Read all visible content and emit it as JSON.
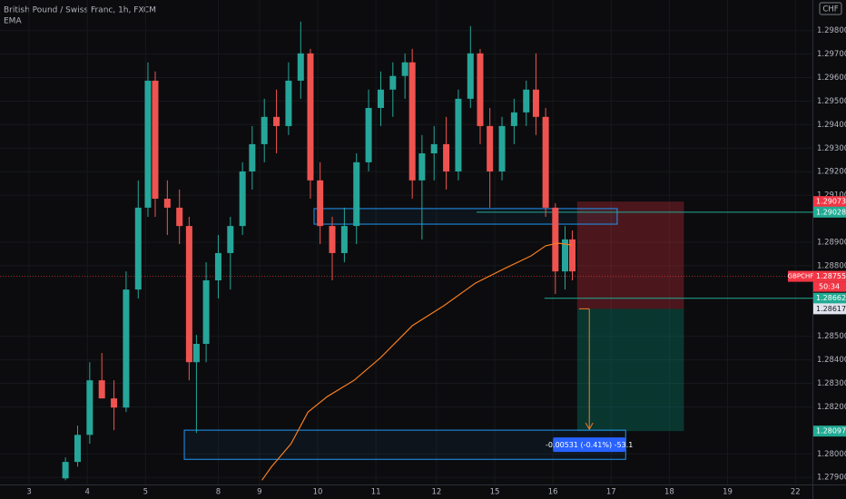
{
  "chart_data": {
    "type": "candlestick",
    "title": "British Pound / Swiss Franc, 1h, FXCM",
    "indicator": "EMA",
    "currency": "CHF",
    "symbol": "GBPCHF",
    "countdown": "50:34",
    "up_color": "#26a69a",
    "down_color": "#ef5350",
    "x": [
      27,
      32,
      37,
      42,
      47,
      52,
      57,
      61,
      64,
      69,
      74,
      78,
      81,
      85,
      90,
      95,
      100,
      104,
      109,
      114,
      119,
      124,
      128,
      132,
      137,
      142,
      147,
      152,
      157,
      162,
      167,
      170,
      174,
      179,
      184,
      189,
      194,
      198,
      202,
      207,
      212,
      217,
      221,
      225,
      229,
      233,
      236
    ],
    "open": [
      1.27896,
      1.27966,
      1.28081,
      1.28313,
      1.28236,
      1.28197,
      1.28699,
      1.29047,
      1.29587,
      1.29085,
      1.29047,
      1.28969,
      1.2839,
      1.28468,
      1.28738,
      1.28854,
      1.28969,
      1.29201,
      1.29317,
      1.29433,
      1.29394,
      1.29587,
      1.29703,
      1.29163,
      1.28969,
      1.28854,
      1.28969,
      1.2924,
      1.29471,
      1.29549,
      1.29607,
      1.29665,
      1.29163,
      1.29278,
      1.29317,
      1.29201,
      1.2951,
      1.29703,
      1.29394,
      1.29201,
      1.29394,
      1.29452,
      1.29549,
      1.29433,
      1.29047,
      1.28776,
      1.28912
    ],
    "high": [
      1.27985,
      1.2812,
      1.2839,
      1.28429,
      1.28313,
      1.28776,
      1.29163,
      1.29665,
      1.29626,
      1.29163,
      1.29124,
      1.29008,
      1.28506,
      1.28815,
      1.28931,
      1.29008,
      1.2924,
      1.29394,
      1.2951,
      1.29549,
      1.29665,
      1.29838,
      1.29722,
      1.2924,
      1.29008,
      1.29047,
      1.29278,
      1.29549,
      1.29626,
      1.29665,
      1.29703,
      1.29722,
      1.29356,
      1.29394,
      1.29433,
      1.29549,
      1.29819,
      1.29722,
      1.29471,
      1.29433,
      1.2951,
      1.29587,
      1.29703,
      1.29471,
      1.29066,
      1.28969,
      1.2895
    ],
    "low": [
      1.27888,
      1.27946,
      1.28043,
      1.28236,
      1.28101,
      1.28178,
      1.28661,
      1.29008,
      1.29008,
      1.28931,
      1.28892,
      1.28313,
      1.28089,
      1.2839,
      1.28661,
      1.28699,
      1.28931,
      1.29124,
      1.2924,
      1.29278,
      1.29356,
      1.2951,
      1.29085,
      1.28892,
      1.28738,
      1.28815,
      1.28892,
      1.29201,
      1.29394,
      1.29433,
      1.2951,
      1.29085,
      1.28912,
      1.29163,
      1.29124,
      1.29163,
      1.29471,
      1.29317,
      1.29047,
      1.29163,
      1.29317,
      1.29394,
      1.29356,
      1.29008,
      1.2868,
      1.28699,
      1.28738
    ],
    "close": [
      1.27966,
      1.28081,
      1.28313,
      1.28236,
      1.28197,
      1.28699,
      1.29047,
      1.29587,
      1.29085,
      1.29047,
      1.28969,
      1.2839,
      1.28468,
      1.28738,
      1.28854,
      1.28969,
      1.29201,
      1.29317,
      1.29433,
      1.29394,
      1.29587,
      1.29703,
      1.29163,
      1.28969,
      1.28854,
      1.28969,
      1.2924,
      1.29471,
      1.29549,
      1.29607,
      1.29665,
      1.29163,
      1.29278,
      1.29317,
      1.29201,
      1.2951,
      1.29703,
      1.29394,
      1.29201,
      1.29394,
      1.29452,
      1.29549,
      1.29433,
      1.29047,
      1.28776,
      1.28912,
      1.28776
    ],
    "ema": {
      "color": "#f57c20",
      "x": [
        108,
        112,
        120,
        127,
        135,
        146,
        157,
        170,
        183,
        196,
        208,
        219,
        225,
        230,
        236
      ],
      "values": [
        1.27888,
        1.27946,
        1.28043,
        1.28178,
        1.28244,
        1.28313,
        1.2841,
        1.28545,
        1.2863,
        1.28726,
        1.28788,
        1.28842,
        1.28885,
        1.28896,
        1.28888
      ]
    },
    "xlim": [
      0,
      335
    ],
    "xticks": [
      {
        "value": 12,
        "label": "3"
      },
      {
        "value": 36,
        "label": "4"
      },
      {
        "value": 60,
        "label": "5"
      },
      {
        "value": 90,
        "label": "8"
      },
      {
        "value": 107,
        "label": "9"
      },
      {
        "value": 131,
        "label": "10"
      },
      {
        "value": 155,
        "label": "11"
      },
      {
        "value": 180,
        "label": "12"
      },
      {
        "value": 204,
        "label": "15"
      },
      {
        "value": 228,
        "label": "16"
      },
      {
        "value": 252,
        "label": "17"
      },
      {
        "value": 276,
        "label": "18"
      },
      {
        "value": 300,
        "label": "19"
      },
      {
        "value": 328,
        "label": "22"
      }
    ],
    "ylim": [
      1.2787,
      1.2993
    ],
    "yticks": [
      {
        "value": 1.298,
        "label": "1.29800"
      },
      {
        "value": 1.297,
        "label": "1.29700"
      },
      {
        "value": 1.296,
        "label": "1.29600"
      },
      {
        "value": 1.295,
        "label": "1.29500"
      },
      {
        "value": 1.294,
        "label": "1.29400"
      },
      {
        "value": 1.293,
        "label": "1.29300"
      },
      {
        "value": 1.292,
        "label": "1.29200"
      },
      {
        "value": 1.291,
        "label": "1.29100"
      },
      {
        "value": 1.289,
        "label": "1.28900"
      },
      {
        "value": 1.288,
        "label": "1.28800"
      },
      {
        "value": 1.285,
        "label": "1.28500"
      },
      {
        "value": 1.284,
        "label": "1.28400"
      },
      {
        "value": 1.283,
        "label": "1.28300"
      },
      {
        "value": 1.282,
        "label": "1.28200"
      },
      {
        "value": 1.28,
        "label": "1.28000"
      },
      {
        "value": 1.279,
        "label": "1.27900"
      }
    ],
    "levels": [
      {
        "value": 1.29073,
        "color": "#f23645",
        "text_color": "#ffffff"
      },
      {
        "value": 1.29028,
        "color": "#22ab94",
        "text_color": "#ffffff",
        "line_from": 196.5
      },
      {
        "value": 1.28755,
        "color": "#f23645",
        "text_color": "#ffffff",
        "line_from": 0,
        "dashed": true
      },
      {
        "value": 1.28662,
        "color": "#22ab94",
        "text_color": "#ffffff",
        "line_from": 224.5
      },
      {
        "value": 1.28617,
        "color": "#e0e3eb",
        "text_color": "#131722"
      },
      {
        "value": 1.28097,
        "color": "#22ab94",
        "text_color": "#ffffff"
      }
    ],
    "zones": [
      {
        "x": [
          129.5,
          254.5
        ],
        "y": [
          1.28977,
          1.29043
        ],
        "color": "#2196f3"
      },
      {
        "x": [
          76,
          258
        ],
        "y": [
          1.27977,
          1.28101
        ],
        "color": "#2196f3"
      }
    ],
    "position": {
      "x": [
        238,
        282
      ],
      "entry": 1.28617,
      "stop": 1.29073,
      "target": 1.28097,
      "arrow_x": 243,
      "label": "-0.00531 (-0.41%) -53.1"
    }
  }
}
